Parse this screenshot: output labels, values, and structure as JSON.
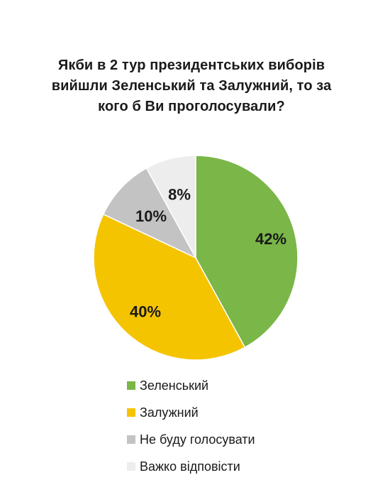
{
  "chart_data": {
    "type": "pie",
    "title_lines": [
      "Якби в 2 тур президентських виборів",
      "вийшли Зеленський та Залужний, то за",
      "кого б Ви проголосували?"
    ],
    "slices": [
      {
        "name": "Зеленський",
        "value": 42,
        "label": "42%",
        "color": "#7ab648"
      },
      {
        "name": "Залужний",
        "value": 40,
        "label": "40%",
        "color": "#f5c400"
      },
      {
        "name": "Не буду голосувати",
        "value": 10,
        "label": "10%",
        "color": "#c3c3c3"
      },
      {
        "name": "Важко відповісти",
        "value": 8,
        "label": "8%",
        "color": "#ededed"
      }
    ],
    "legend_position": "bottom"
  }
}
